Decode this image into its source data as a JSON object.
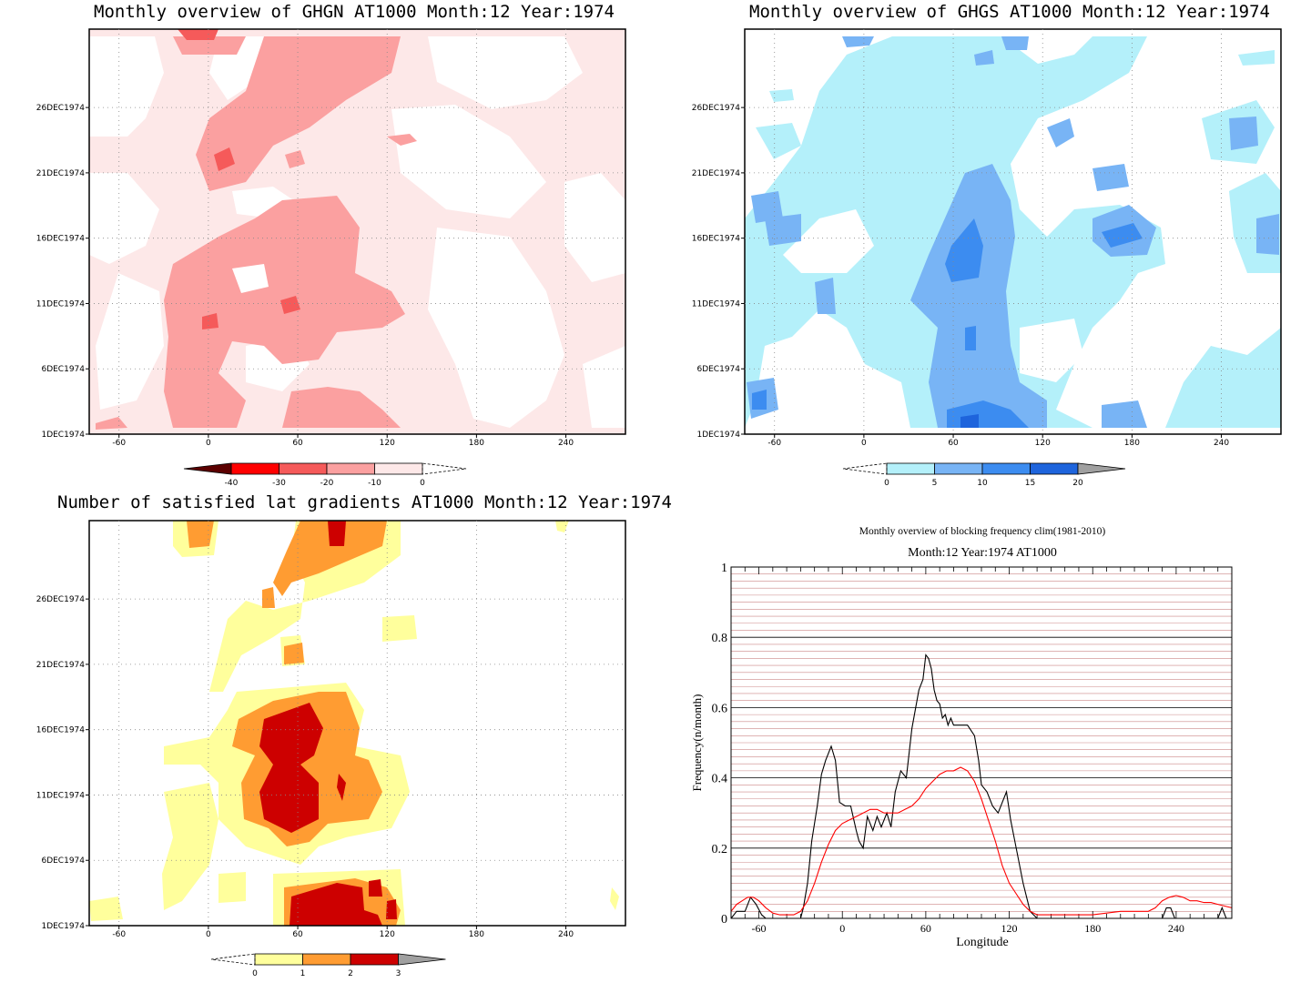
{
  "panels": {
    "ghgn": {
      "title": "Monthly overview of GHGN AT1000 Month:12 Year:1974"
    },
    "ghgs": {
      "title": "Monthly overview of GHGS AT1000 Month:12 Year:1974"
    },
    "grad": {
      "title": "Number of satisfied lat gradients AT1000 Month:12 Year:1974"
    },
    "block": {
      "title": "Monthly overview of blocking frequency clim(1981-2010)",
      "subtitle": "Month:12 Year:1974  AT1000",
      "xlabel": "Longitude",
      "ylabel": "Frequency(n/month)"
    }
  },
  "map_axes": {
    "x_ticks": [
      "-60",
      "0",
      "60",
      "120",
      "180",
      "240"
    ],
    "y_ticks": [
      "1DEC1974",
      "6DEC1974",
      "11DEC1974",
      "16DEC1974",
      "21DEC1974",
      "26DEC1974"
    ]
  },
  "colorbars": {
    "ghgn": {
      "labels": [
        "-40",
        "-30",
        "-20",
        "-10",
        "0"
      ],
      "colors": [
        "#5c0000",
        "#ff0000",
        "#f55a5a",
        "#fba0a0",
        "#fde8e8"
      ]
    },
    "ghgs": {
      "labels": [
        "0",
        "5",
        "10",
        "15",
        "20"
      ],
      "colors": [
        "#b4f0fa",
        "#78b4f5",
        "#3c8cf0",
        "#1e64dc",
        "#a0a0a0"
      ]
    },
    "grad": {
      "labels": [
        "0",
        "1",
        "2",
        "3"
      ],
      "colors": [
        "#ffff9c",
        "#ff9c32",
        "#cd0000",
        "#a0a0a0"
      ]
    }
  },
  "chart_data": [
    {
      "type": "heatmap",
      "title": "Monthly overview of GHGN AT1000 Month:12 Year:1974",
      "xlim": [
        -80,
        280
      ],
      "x_ticks": [
        -60,
        0,
        60,
        120,
        180,
        240
      ],
      "y_ticks": [
        "1DEC1974",
        "6DEC1974",
        "11DEC1974",
        "16DEC1974",
        "21DEC1974",
        "26DEC1974"
      ],
      "levels": [
        -40,
        -30,
        -20,
        -10,
        0
      ],
      "colors": [
        "#5c0000",
        "#ff0000",
        "#f55a5a",
        "#fba0a0",
        "#fde8e8"
      ]
    },
    {
      "type": "heatmap",
      "title": "Monthly overview of GHGS AT1000 Month:12 Year:1974",
      "xlim": [
        -80,
        280
      ],
      "x_ticks": [
        -60,
        0,
        60,
        120,
        180,
        240
      ],
      "y_ticks": [
        "1DEC1974",
        "6DEC1974",
        "11DEC1974",
        "16DEC1974",
        "21DEC1974",
        "26DEC1974"
      ],
      "levels": [
        0,
        5,
        10,
        15,
        20
      ],
      "colors": [
        "#b4f0fa",
        "#78b4f5",
        "#3c8cf0",
        "#1e64dc",
        "#a0a0a0"
      ]
    },
    {
      "type": "heatmap",
      "title": "Number of satisfied lat gradients AT1000 Month:12 Year:1974",
      "xlim": [
        -80,
        280
      ],
      "x_ticks": [
        -60,
        0,
        60,
        120,
        180,
        240
      ],
      "y_ticks": [
        "1DEC1974",
        "6DEC1974",
        "11DEC1974",
        "16DEC1974",
        "21DEC1974",
        "26DEC1974"
      ],
      "levels": [
        0,
        1,
        2,
        3
      ],
      "colors": [
        "#ffff9c",
        "#ff9c32",
        "#cd0000",
        "#a0a0a0"
      ]
    },
    {
      "type": "line",
      "title": "Monthly overview of blocking frequency clim(1981-2010)",
      "subtitle": "Month:12 Year:1974  AT1000",
      "xlabel": "Longitude",
      "ylabel": "Frequency(n/month)",
      "xlim": [
        -80,
        280
      ],
      "ylim": [
        0,
        1
      ],
      "x_ticks": [
        -60,
        0,
        60,
        120,
        180,
        240
      ],
      "y_ticks": [
        0,
        0.2,
        0.4,
        0.6,
        0.8,
        1
      ],
      "y_tick_labels": [
        "0",
        "0.2",
        "0.4",
        "0.6",
        "0.8",
        "1"
      ],
      "series": [
        {
          "color": "#000000",
          "x": [
            -80,
            -76,
            -70,
            -66,
            -62,
            -58,
            -55,
            -50,
            -40,
            -30,
            -28,
            -25,
            -22,
            -18,
            -15,
            -12,
            -8,
            -5,
            -2,
            2,
            6,
            10,
            12,
            15,
            18,
            22,
            25,
            28,
            32,
            35,
            38,
            42,
            46,
            50,
            55,
            58,
            60,
            62,
            64,
            66,
            68,
            70,
            72,
            74,
            76,
            78,
            80,
            85,
            90,
            95,
            98,
            100,
            104,
            108,
            112,
            115,
            118,
            121,
            125,
            130,
            135,
            140,
            145,
            150,
            160,
            180,
            200,
            220,
            230,
            233,
            236,
            239,
            242,
            260,
            270,
            273,
            276,
            280
          ],
          "y": [
            0,
            0.02,
            0.02,
            0.06,
            0.04,
            0.01,
            0,
            0,
            0,
            0,
            0.03,
            0.1,
            0.22,
            0.32,
            0.41,
            0.45,
            0.49,
            0.45,
            0.33,
            0.32,
            0.32,
            0.25,
            0.22,
            0.2,
            0.29,
            0.25,
            0.29,
            0.26,
            0.3,
            0.26,
            0.36,
            0.42,
            0.4,
            0.54,
            0.65,
            0.68,
            0.75,
            0.74,
            0.71,
            0.65,
            0.62,
            0.61,
            0.57,
            0.58,
            0.55,
            0.57,
            0.55,
            0.55,
            0.55,
            0.52,
            0.45,
            0.38,
            0.36,
            0.32,
            0.3,
            0.33,
            0.36,
            0.28,
            0.2,
            0.1,
            0.02,
            0,
            0,
            0,
            0,
            0,
            0,
            0,
            0,
            0.03,
            0.03,
            0,
            0,
            0,
            0,
            0.03,
            0,
            0
          ]
        },
        {
          "color": "#ff0000",
          "x": [
            -80,
            -76,
            -72,
            -68,
            -64,
            -60,
            -55,
            -50,
            -45,
            -40,
            -35,
            -30,
            -25,
            -20,
            -15,
            -10,
            -5,
            0,
            5,
            10,
            15,
            20,
            25,
            30,
            35,
            40,
            45,
            50,
            55,
            60,
            65,
            70,
            75,
            80,
            85,
            90,
            95,
            100,
            105,
            110,
            115,
            120,
            125,
            130,
            135,
            140,
            145,
            150,
            160,
            180,
            200,
            220,
            225,
            230,
            235,
            240,
            245,
            250,
            255,
            260,
            265,
            270,
            275,
            280
          ],
          "y": [
            0.02,
            0.04,
            0.05,
            0.06,
            0.06,
            0.05,
            0.03,
            0.015,
            0.01,
            0.01,
            0.01,
            0.02,
            0.05,
            0.1,
            0.16,
            0.21,
            0.25,
            0.27,
            0.28,
            0.29,
            0.3,
            0.31,
            0.31,
            0.3,
            0.3,
            0.3,
            0.31,
            0.32,
            0.34,
            0.37,
            0.39,
            0.41,
            0.42,
            0.42,
            0.43,
            0.42,
            0.39,
            0.34,
            0.28,
            0.22,
            0.15,
            0.1,
            0.07,
            0.04,
            0.02,
            0.01,
            0.01,
            0.01,
            0.01,
            0.01,
            0.02,
            0.02,
            0.03,
            0.05,
            0.06,
            0.065,
            0.06,
            0.05,
            0.05,
            0.045,
            0.045,
            0.04,
            0.035,
            0.03
          ]
        }
      ]
    }
  ]
}
